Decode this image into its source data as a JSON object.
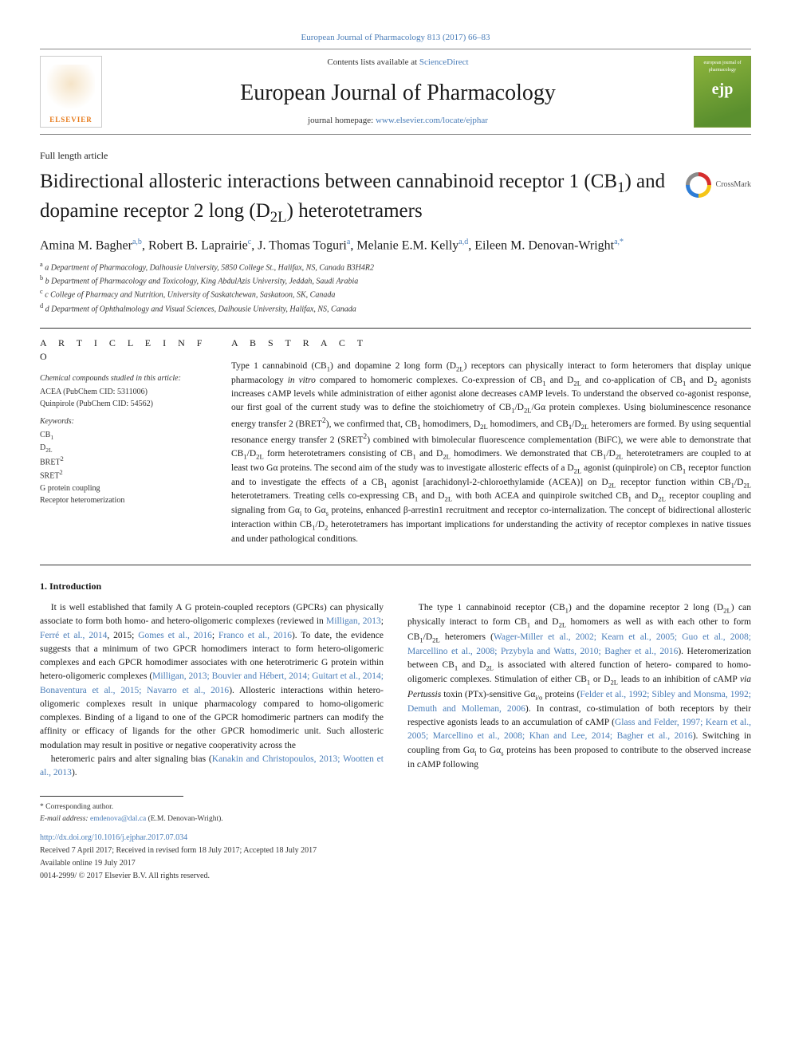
{
  "header": {
    "top_link": "European Journal of Pharmacology 813 (2017) 66–83",
    "contents_prefix": "Contents lists available at ",
    "contents_link": "ScienceDirect",
    "journal_name": "European Journal of Pharmacology",
    "homepage_prefix": "journal homepage: ",
    "homepage_link": "www.elsevier.com/locate/ejphar",
    "elsevier_label": "ELSEVIER",
    "cover_text_top": "european journal of pharmacology",
    "cover_text_big": "ejp"
  },
  "article": {
    "type": "Full length article",
    "title_html": "Bidirectional allosteric interactions between cannabinoid receptor 1 (CB<sub>1</sub>) and dopamine receptor 2 long (D<sub>2L</sub>) heterotetramers",
    "crossmark_label": "CrossMark",
    "authors_html": "Amina M. Bagher<sup>a,b</sup>, Robert B. Laprairie<sup>c</sup>, J. Thomas Toguri<sup>a</sup>, Melanie E.M. Kelly<sup>a,d</sup>, Eileen M. Denovan-Wright<sup>a,*</sup>",
    "affiliations": [
      "a Department of Pharmacology, Dalhousie University, 5850 College St., Halifax, NS, Canada B3H4R2",
      "b Department of Pharmacology and Toxicology, King AbdulAzis University, Jeddah, Saudi Arabia",
      "c College of Pharmacy and Nutrition, University of Saskatchewan, Saskatoon, SK, Canada",
      "d Department of Ophthalmology and Visual Sciences, Dalhousie University, Halifax, NS, Canada"
    ]
  },
  "info": {
    "heading": "A R T I C L E  I N F O",
    "compounds_label": "Chemical compounds studied in this article:",
    "compounds": [
      "ACEA (PubChem CID: 5311006)",
      "Quinpirole (PubChem CID: 54562)"
    ],
    "keywords_label": "Keywords:",
    "keywords_html": [
      "CB<sub>1</sub>",
      "D<sub>2L</sub>",
      "BRET<sup>2</sup>",
      "SRET<sup>2</sup>",
      "G protein coupling",
      "Receptor heteromerization"
    ]
  },
  "abstract": {
    "heading": "A B S T R A C T",
    "text_html": "Type 1 cannabinoid (CB<sub>1</sub>) and dopamine 2 long form (D<sub>2L</sub>) receptors can physically interact to form heteromers that display unique pharmacology <i>in vitro</i> compared to homomeric complexes. Co-expression of CB<sub>1</sub> and D<sub>2L</sub> and co-application of CB<sub>1</sub> and D<sub>2</sub> agonists increases cAMP levels while administration of either agonist alone decreases cAMP levels. To understand the observed co-agonist response, our first goal of the current study was to define the stoichiometry of CB<sub>1</sub>/D<sub>2L</sub>/Gα protein complexes. Using bioluminescence resonance energy transfer 2 (BRET<sup>2</sup>), we confirmed that, CB<sub>1</sub> homodimers, D<sub>2L</sub> homodimers, and CB<sub>1</sub>/D<sub>2L</sub> heteromers are formed. By using sequential resonance energy transfer 2 (SRET<sup>2</sup>) combined with bimolecular fluorescence complementation (BiFC), we were able to demonstrate that CB<sub>1</sub>/D<sub>2L</sub> form heterotetramers consisting of CB<sub>1</sub> and D<sub>2L</sub> homodimers. We demonstrated that CB<sub>1</sub>/D<sub>2L</sub> heterotetramers are coupled to at least two Gα proteins. The second aim of the study was to investigate allosteric effects of a D<sub>2L</sub> agonist (quinpirole) on CB<sub>1</sub> receptor function and to investigate the effects of a CB<sub>1</sub> agonist [arachidonyl-2-chloroethylamide (ACEA)] on D<sub>2L</sub> receptor function within CB<sub>1</sub>/D<sub>2L</sub> heterotetramers. Treating cells co-expressing CB<sub>1</sub> and D<sub>2L</sub> with both ACEA and quinpirole switched CB<sub>1</sub> and D<sub>2L</sub> receptor coupling and signaling from Gα<sub>i</sub> to Gα<sub>s</sub> proteins, enhanced β-arrestin1 recruitment and receptor co-internalization. The concept of bidirectional allosteric interaction within CB<sub>1</sub>/D<sub>2</sub> heterotetramers has important implications for understanding the activity of receptor complexes in native tissues and under pathological conditions."
  },
  "body": {
    "intro_heading": "1. Introduction",
    "para1_html": "It is well established that family A G protein-coupled receptors (GPCRs) can physically associate to form both homo- and hetero-oligomeric complexes (reviewed in <span class=\"ref-link\">Milligan, 2013</span>; <span class=\"ref-link\">Ferré et al., 2014</span>, 2015; <span class=\"ref-link\">Gomes et al., 2016</span>; <span class=\"ref-link\">Franco et al., 2016</span>). To date, the evidence suggests that a minimum of two GPCR homodimers interact to form hetero-oligomeric complexes and each GPCR homodimer associates with one heterotrimeric G protein within hetero-oligomeric complexes (<span class=\"ref-link\">Milligan, 2013; Bouvier and Hébert, 2014; Guitart et al., 2014; Bonaventura et al., 2015; Navarro et al., 2016</span>). Allosteric interactions within hetero-oligomeric complexes result in unique pharmacology compared to homo-oligomeric complexes. Binding of a ligand to one of the GPCR homodimeric partners can modify the affinity or efficacy of ligands for the other GPCR homodimeric unit. Such allosteric modulation may result in positive or negative cooperativity across the",
    "para2_html": "heteromeric pairs and alter signaling bias (<span class=\"ref-link\">Kanakin and Christopoulos, 2013; Wootten et al., 2013</span>).",
    "para3_html": "The type 1 cannabinoid receptor (CB<sub>1</sub>) and the dopamine receptor 2 long (D<sub>2L</sub>) can physically interact to form CB<sub>1</sub> and D<sub>2L</sub> homomers as well as with each other to form CB<sub>1</sub>/D<sub>2L</sub> heteromers (<span class=\"ref-link\">Wager-Miller et al., 2002; Kearn et al., 2005; Guo et al., 2008; Marcellino et al., 2008; Przybyla and Watts, 2010; Bagher et al., 2016</span>). Heteromerization between CB<sub>1</sub> and D<sub>2L</sub> is associated with altered function of hetero- compared to homo-oligomeric complexes. Stimulation of either CB<sub>1</sub> or D<sub>2L</sub> leads to an inhibition of cAMP <i>via Pertussis</i> toxin (PTx)-sensitive Gα<sub>i/o</sub> proteins (<span class=\"ref-link\">Felder et al., 1992; Sibley and Monsma, 1992; Demuth and Molleman, 2006</span>). In contrast, co-stimulation of both receptors by their respective agonists leads to an accumulation of cAMP (<span class=\"ref-link\">Glass and Felder, 1997; Kearn et al., 2005; Marcellino et al., 2008; Khan and Lee, 2014; Bagher et al., 2016</span>). Switching in coupling from Gα<sub>i</sub> to Gα<sub>s</sub> proteins has been proposed to contribute to the observed increase in cAMP following"
  },
  "footer": {
    "corresponding": "* Corresponding author.",
    "email_label": "E-mail address: ",
    "email": "emdenova@dal.ca",
    "email_suffix": " (E.M. Denovan-Wright).",
    "doi": "http://dx.doi.org/10.1016/j.ejphar.2017.07.034",
    "history": "Received 7 April 2017; Received in revised form 18 July 2017; Accepted 18 July 2017",
    "available": "Available online 19 July 2017",
    "copyright": "0014-2999/ © 2017 Elsevier B.V. All rights reserved."
  },
  "colors": {
    "link": "#4a7db8",
    "elsevier_orange": "#e67817",
    "cover_green_top": "#8fb53c",
    "cover_green_bot": "#5a8f2e",
    "rule": "#333333"
  }
}
